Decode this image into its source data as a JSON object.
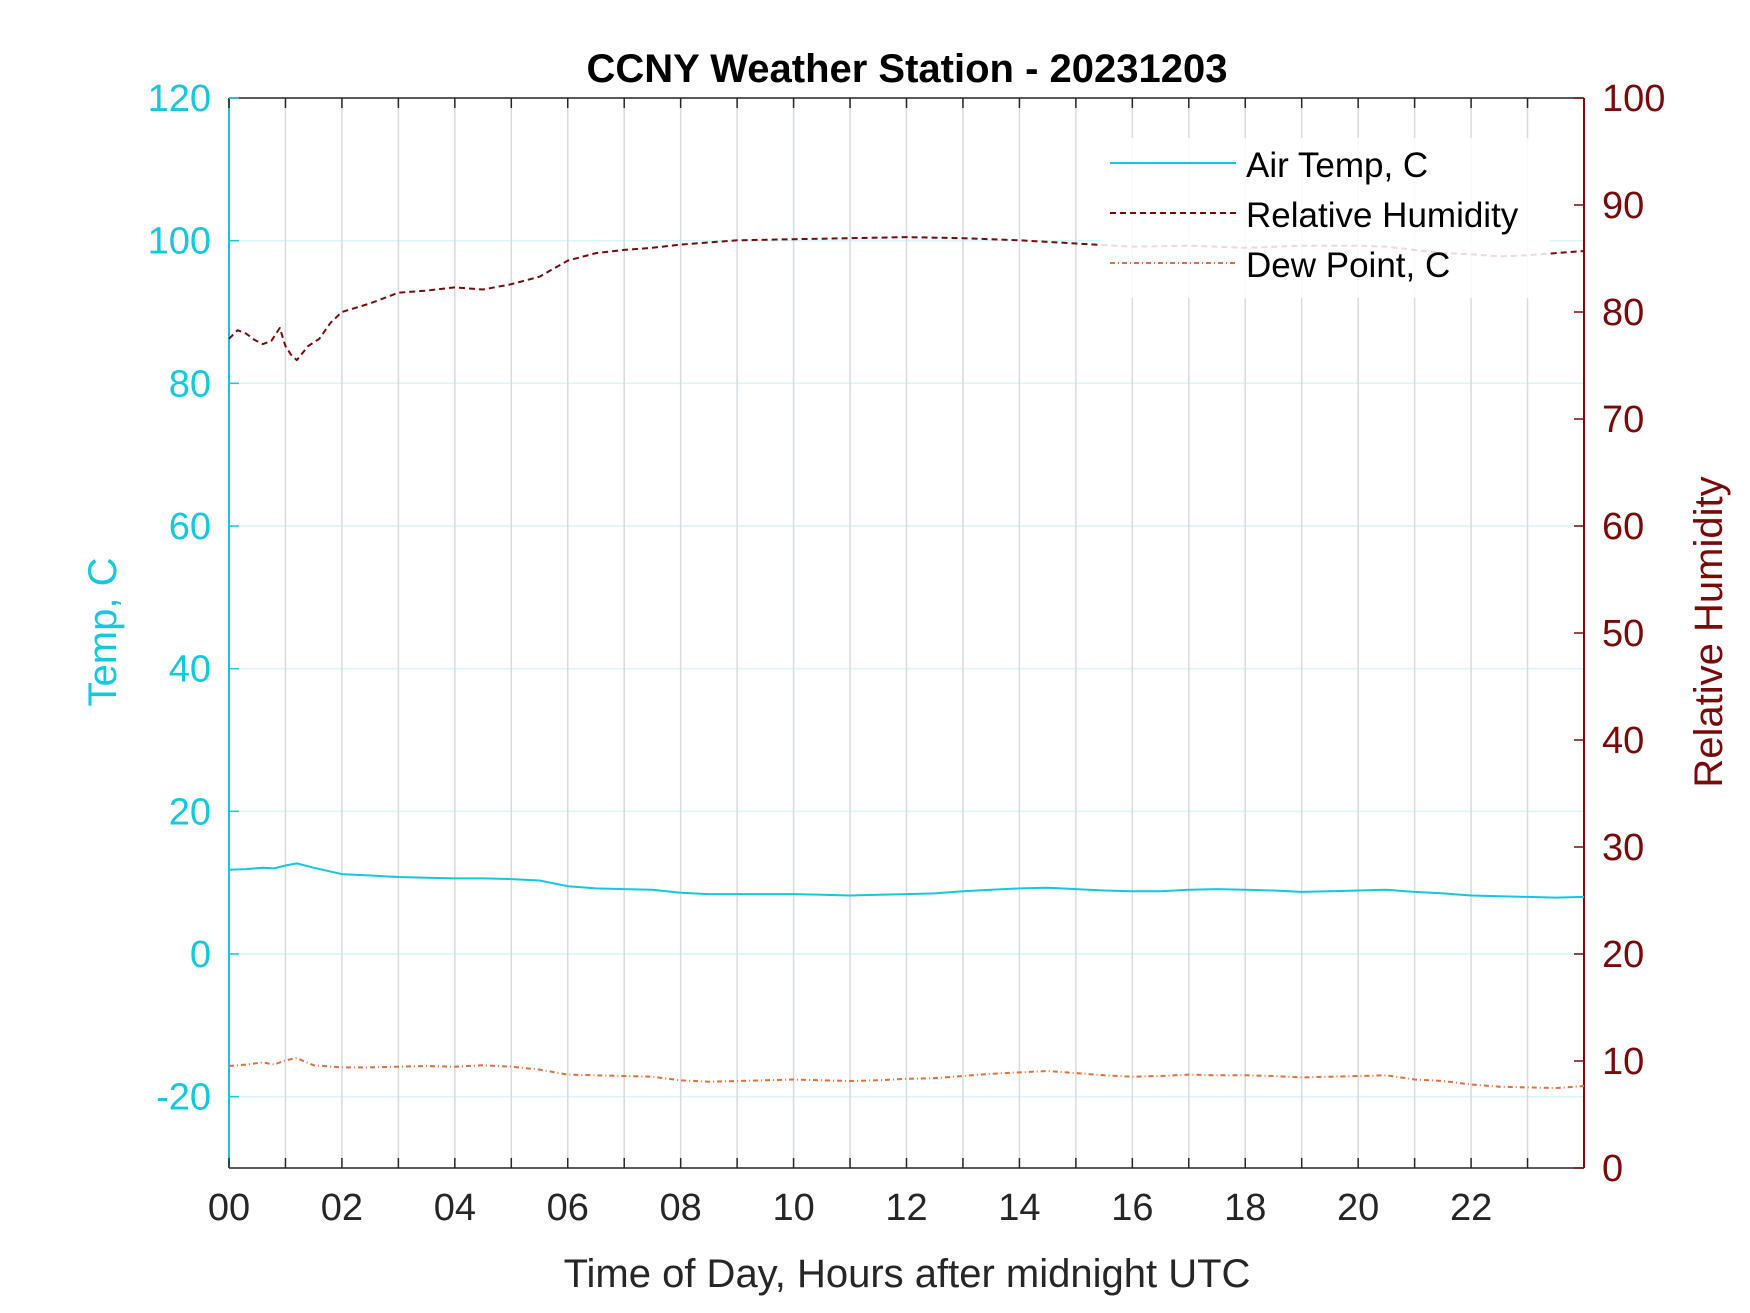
{
  "chart_data": {
    "type": "line",
    "title": "CCNY Weather Station - 20231203",
    "xlabel": "Time of Day, Hours after midnight UTC",
    "ylabel_left": "Temp, C",
    "ylabel_right": "Relative Humidity",
    "xlim": [
      0,
      24
    ],
    "ylim_left": [
      -30,
      120
    ],
    "ylim_right": [
      0,
      100
    ],
    "x_ticks": [
      0,
      2,
      4,
      6,
      8,
      10,
      12,
      14,
      16,
      18,
      20,
      22
    ],
    "x_tick_labels": [
      "00",
      "02",
      "04",
      "06",
      "08",
      "10",
      "12",
      "14",
      "16",
      "18",
      "20",
      "22"
    ],
    "y_ticks_left": [
      -20,
      0,
      20,
      40,
      60,
      80,
      100,
      120
    ],
    "y_ticks_right": [
      0,
      10,
      20,
      30,
      40,
      50,
      60,
      70,
      80,
      90,
      100
    ],
    "grid": true,
    "legend_position": "top-right",
    "colors": {
      "left_axis": "#14c8e0",
      "right_axis": "#7a0a0a",
      "air_temp": "#14c8e0",
      "humidity": "#7a0a0a",
      "dew_point": "#e0703a",
      "grid_vertical": "#d6dbe0",
      "grid_horizontal": "#d8f4f8"
    },
    "series": [
      {
        "name": "Air Temp, C",
        "axis": "left",
        "style": "solid",
        "x": [
          0,
          0.3,
          0.6,
          0.8,
          1.0,
          1.2,
          1.5,
          2.0,
          2.5,
          3.0,
          3.5,
          4.0,
          4.5,
          5.0,
          5.5,
          6.0,
          6.5,
          7.0,
          7.5,
          8.0,
          8.5,
          9.0,
          9.5,
          10.0,
          10.5,
          11.0,
          11.5,
          12.0,
          12.5,
          13.0,
          13.5,
          14.0,
          14.5,
          15.0,
          15.5,
          16.0,
          16.5,
          17.0,
          17.5,
          18.0,
          18.5,
          19.0,
          19.5,
          20.0,
          20.5,
          21.0,
          21.5,
          22.0,
          22.5,
          23.0,
          23.5,
          24.0
        ],
        "y": [
          11.8,
          11.9,
          12.1,
          12.0,
          12.4,
          12.7,
          12.1,
          11.2,
          11.0,
          10.8,
          10.7,
          10.6,
          10.6,
          10.5,
          10.3,
          9.5,
          9.2,
          9.1,
          9.0,
          8.6,
          8.4,
          8.4,
          8.4,
          8.4,
          8.3,
          8.2,
          8.3,
          8.4,
          8.5,
          8.8,
          9.0,
          9.2,
          9.3,
          9.1,
          8.9,
          8.8,
          8.8,
          9.0,
          9.1,
          9.0,
          8.9,
          8.7,
          8.8,
          8.9,
          9.0,
          8.7,
          8.5,
          8.2,
          8.1,
          8.0,
          7.9,
          8.0
        ]
      },
      {
        "name": "Relative Humidity",
        "axis": "right",
        "style": "dashed",
        "x": [
          0,
          0.15,
          0.3,
          0.45,
          0.6,
          0.75,
          0.9,
          1.0,
          1.1,
          1.2,
          1.4,
          1.6,
          1.8,
          2.0,
          2.5,
          3.0,
          3.5,
          4.0,
          4.5,
          5.0,
          5.5,
          6.0,
          6.5,
          7.0,
          7.5,
          8.0,
          9.0,
          10.0,
          11.0,
          12.0,
          13.0,
          14.0,
          15.0,
          16.0,
          17.0,
          18.0,
          19.0,
          20.0,
          20.5,
          21.0,
          21.5,
          22.0,
          22.5,
          23.0,
          23.5,
          24.0
        ],
        "y": [
          77.5,
          78.3,
          78.0,
          77.4,
          77.0,
          77.3,
          78.5,
          76.8,
          76.0,
          75.5,
          76.8,
          77.5,
          79.0,
          80.0,
          80.8,
          81.8,
          82.0,
          82.3,
          82.1,
          82.6,
          83.3,
          84.8,
          85.5,
          85.8,
          86.0,
          86.3,
          86.7,
          86.8,
          86.9,
          87.0,
          86.9,
          86.7,
          86.4,
          86.1,
          86.2,
          86.0,
          86.2,
          86.2,
          86.1,
          85.8,
          85.5,
          85.4,
          85.2,
          85.3,
          85.5,
          85.7
        ]
      },
      {
        "name": "Dew Point, C",
        "axis": "left",
        "style": "dash-dot",
        "x": [
          0,
          0.3,
          0.6,
          0.8,
          1.0,
          1.2,
          1.5,
          2.0,
          2.5,
          3.0,
          3.5,
          4.0,
          4.5,
          5.0,
          5.5,
          6.0,
          6.5,
          7.0,
          7.5,
          8.0,
          8.5,
          9.0,
          9.5,
          10.0,
          10.5,
          11.0,
          11.5,
          12.0,
          12.5,
          13.0,
          13.5,
          14.0,
          14.5,
          15.0,
          15.5,
          16.0,
          16.5,
          17.0,
          17.5,
          18.0,
          18.5,
          19.0,
          19.5,
          20.0,
          20.5,
          21.0,
          21.5,
          22.0,
          22.5,
          23.0,
          23.5,
          24.0
        ],
        "y": [
          -15.7,
          -15.5,
          -15.2,
          -15.5,
          -14.9,
          -14.6,
          -15.6,
          -15.9,
          -15.9,
          -15.8,
          -15.7,
          -15.8,
          -15.6,
          -15.8,
          -16.2,
          -16.9,
          -17.0,
          -17.1,
          -17.2,
          -17.7,
          -17.9,
          -17.8,
          -17.7,
          -17.6,
          -17.7,
          -17.8,
          -17.7,
          -17.5,
          -17.4,
          -17.1,
          -16.8,
          -16.6,
          -16.4,
          -16.7,
          -17.0,
          -17.2,
          -17.1,
          -16.9,
          -17.0,
          -17.0,
          -17.1,
          -17.3,
          -17.2,
          -17.1,
          -17.0,
          -17.6,
          -17.8,
          -18.3,
          -18.6,
          -18.7,
          -18.8,
          -18.5
        ]
      }
    ]
  }
}
